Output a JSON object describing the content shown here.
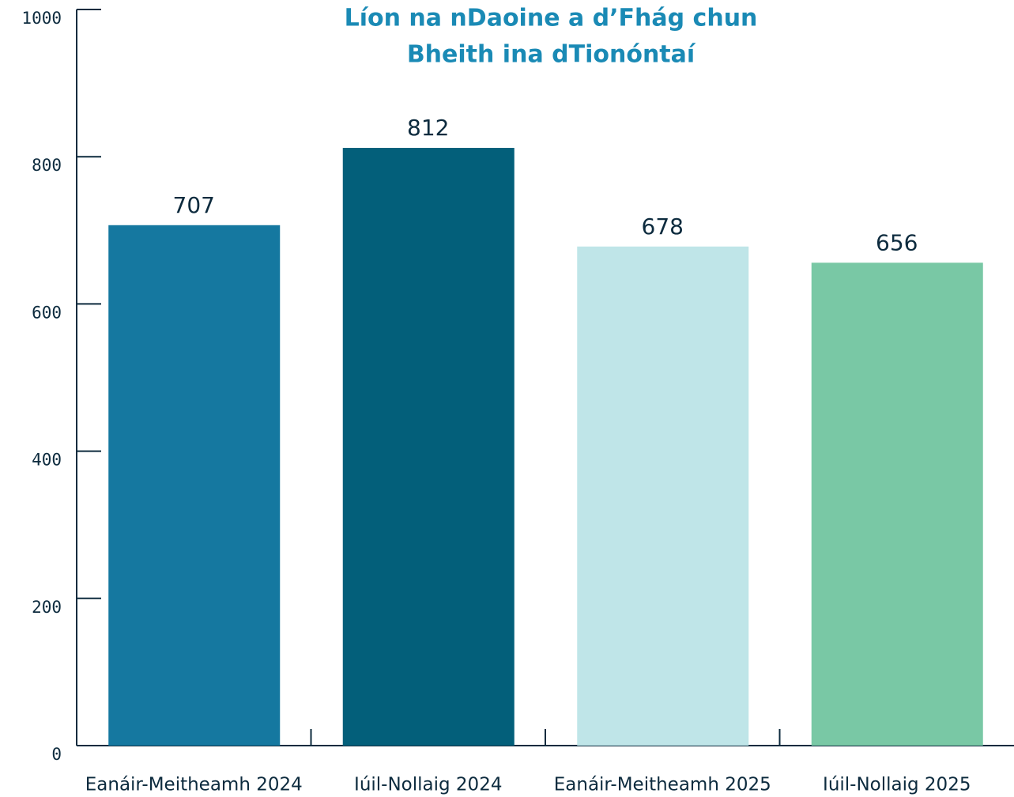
{
  "chart_data": {
    "type": "bar",
    "title": [
      "Líon na nDaoine a d’Fhág chun",
      "Bheith ina dTionóntaí"
    ],
    "categories": [
      "Eanáir-Meitheamh 2024",
      "Iúil-Nollaig 2024",
      "Eanáir-Meitheamh 2025",
      "Iúil-Nollaig 2025"
    ],
    "values": [
      707,
      812,
      678,
      656
    ],
    "colors": [
      "#1578a0",
      "#035f7a",
      "#bfe5e8",
      "#79c8a5"
    ],
    "ylim": [
      0,
      1000
    ],
    "yticks": [
      0,
      200,
      400,
      600,
      800,
      1000
    ],
    "grid": false
  }
}
